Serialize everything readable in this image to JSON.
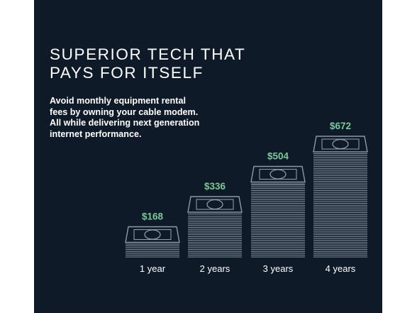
{
  "headline": {
    "line1": "SUPERIOR TECH THAT",
    "line2": "PAYS FOR ITSELF"
  },
  "body_copy": {
    "line1": "Avoid monthly equipment rental",
    "line2": "fees by owning your cable modem.",
    "line3": "All while delivering next generation",
    "line4": "internet performance."
  },
  "colors": {
    "background": "#0f1a29",
    "value_label": "#7bc89a",
    "bill_stroke": "#8c99a6",
    "text": "#ffffff"
  },
  "icons": [
    "dollar-bill-icon"
  ],
  "chart_data": {
    "type": "bar",
    "categories": [
      "1 year",
      "2 years",
      "3 years",
      "4 years"
    ],
    "values": [
      168,
      336,
      504,
      672
    ],
    "value_labels": [
      "$168",
      "$336",
      "$504",
      "$672"
    ],
    "title": "",
    "xlabel": "",
    "ylabel": "",
    "ylim": [
      0,
      672
    ],
    "grid": false,
    "legend": "none"
  }
}
